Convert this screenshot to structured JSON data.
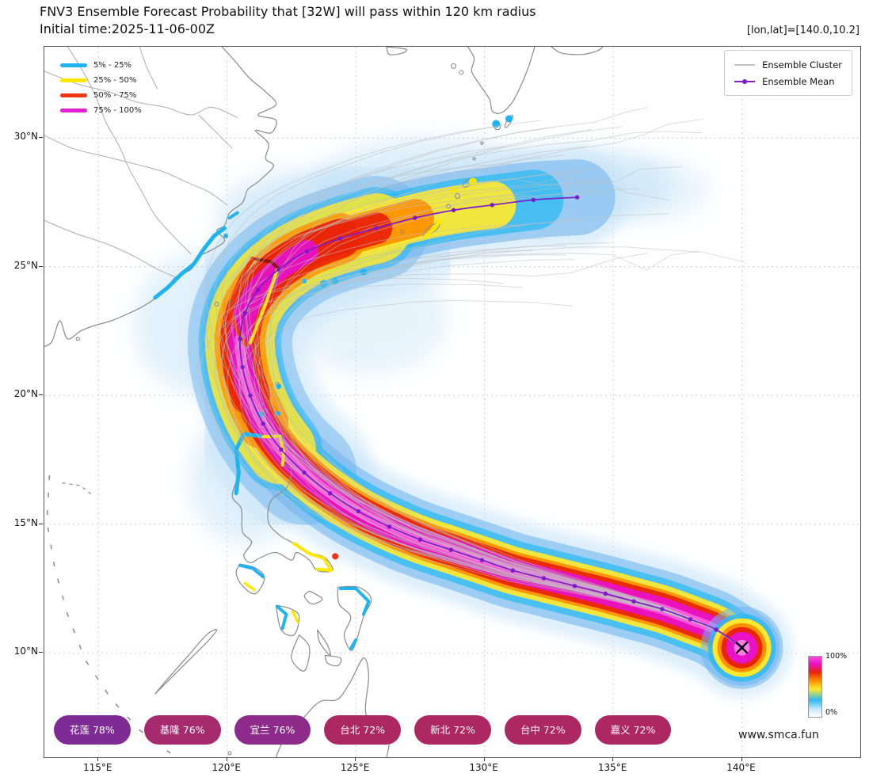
{
  "header": {
    "title": "FNV3 Ensemble Forecast Probability that [32W] will pass within 120 km radius",
    "subtitle": "Initial time:2025-11-06-00Z",
    "annotation": "[lon,lat]=[140.0,10.2]"
  },
  "legend_probability": {
    "items": [
      {
        "label": "5% - 25%",
        "color": "#1fb4f0"
      },
      {
        "label": "25% - 50%",
        "color": "#ffe800"
      },
      {
        "label": "50% - 75%",
        "color": "#f03410"
      },
      {
        "label": "75% - 100%",
        "color": "#e020d0"
      }
    ]
  },
  "legend_tracks": {
    "cluster_label": "Ensemble Cluster",
    "cluster_color": "#c0c0c0",
    "mean_label": "Ensemble Mean",
    "mean_color": "#7d1ac9"
  },
  "axes": {
    "x_tick_labels": [
      "115°E",
      "120°E",
      "125°E",
      "130°E",
      "135°E",
      "140°E"
    ],
    "y_tick_labels": [
      "10°N",
      "15°N",
      "20°N",
      "25°N",
      "30°N"
    ]
  },
  "colorbar": {
    "top_label": "100%",
    "bottom_label": "0%",
    "stops": [
      {
        "p": 0,
        "c": "#ffffff"
      },
      {
        "p": 12,
        "c": "#cfe9fb"
      },
      {
        "p": 28,
        "c": "#2cb9f1"
      },
      {
        "p": 46,
        "c": "#ffe92e"
      },
      {
        "p": 60,
        "c": "#ff9000"
      },
      {
        "p": 74,
        "c": "#ea2408"
      },
      {
        "p": 88,
        "c": "#e812c6"
      },
      {
        "p": 100,
        "c": "#ff4de0"
      }
    ]
  },
  "watermark": "www.smca.fun",
  "badges": [
    {
      "station": "花莲",
      "probability_pct": 78,
      "label": "花莲 78%",
      "color": "#7e2b96"
    },
    {
      "station": "基隆",
      "probability_pct": 76,
      "label": "基隆 76%",
      "color": "#a62a6e"
    },
    {
      "station": "宜兰",
      "probability_pct": 76,
      "label": "宜兰 76%",
      "color": "#8e2b8a"
    },
    {
      "station": "台北",
      "probability_pct": 72,
      "label": "台北 72%",
      "color": "#ad2762"
    },
    {
      "station": "新北",
      "probability_pct": 72,
      "label": "新北 72%",
      "color": "#ad2762"
    },
    {
      "station": "台中",
      "probability_pct": 72,
      "label": "台中 72%",
      "color": "#ad2762"
    },
    {
      "station": "嘉义",
      "probability_pct": 72,
      "label": "嘉义 72%",
      "color": "#ad2762"
    }
  ],
  "chart_data": {
    "type": "line",
    "subtype": "typhoon-ensemble-track-probability-map",
    "storm_id": "32W",
    "pass_radius_km": 120,
    "initial_time": "2025-11-06-00Z",
    "origin_lonlat": [
      140.0,
      10.2
    ],
    "lon_range": [
      112.9,
      144.6
    ],
    "lat_range": [
      5.95,
      33.55
    ],
    "x_ticks_deg": [
      115,
      120,
      125,
      130,
      135,
      140
    ],
    "y_ticks_deg": [
      10,
      15,
      20,
      25,
      30
    ],
    "probability_bands": [
      {
        "range": "5% - 25%",
        "color": "#1fb4f0"
      },
      {
        "range": "25% - 50%",
        "color": "#ffe800"
      },
      {
        "range": "50% - 75%",
        "color": "#f03410"
      },
      {
        "range": "75% - 100%",
        "color": "#e020d0"
      }
    ],
    "ensemble_mean_track": [
      [
        140.0,
        10.2
      ],
      [
        139.0,
        10.9
      ],
      [
        138.0,
        11.3
      ],
      [
        136.9,
        11.7
      ],
      [
        135.8,
        12.0
      ],
      [
        134.7,
        12.3
      ],
      [
        133.5,
        12.6
      ],
      [
        132.3,
        12.9
      ],
      [
        131.1,
        13.2
      ],
      [
        129.9,
        13.6
      ],
      [
        128.7,
        14.0
      ],
      [
        127.5,
        14.4
      ],
      [
        126.3,
        14.9
      ],
      [
        125.1,
        15.5
      ],
      [
        124.0,
        16.2
      ],
      [
        123.0,
        17.0
      ],
      [
        122.1,
        17.9
      ],
      [
        121.4,
        18.9
      ],
      [
        120.9,
        20.0
      ],
      [
        120.6,
        21.1
      ],
      [
        120.5,
        22.2
      ],
      [
        120.7,
        23.2
      ],
      [
        121.2,
        24.1
      ],
      [
        122.0,
        24.9
      ],
      [
        123.1,
        25.6
      ],
      [
        124.4,
        26.1
      ],
      [
        125.8,
        26.5
      ],
      [
        127.3,
        26.9
      ],
      [
        128.8,
        27.2
      ],
      [
        130.3,
        27.4
      ],
      [
        131.9,
        27.6
      ],
      [
        133.6,
        27.7
      ]
    ]
  }
}
